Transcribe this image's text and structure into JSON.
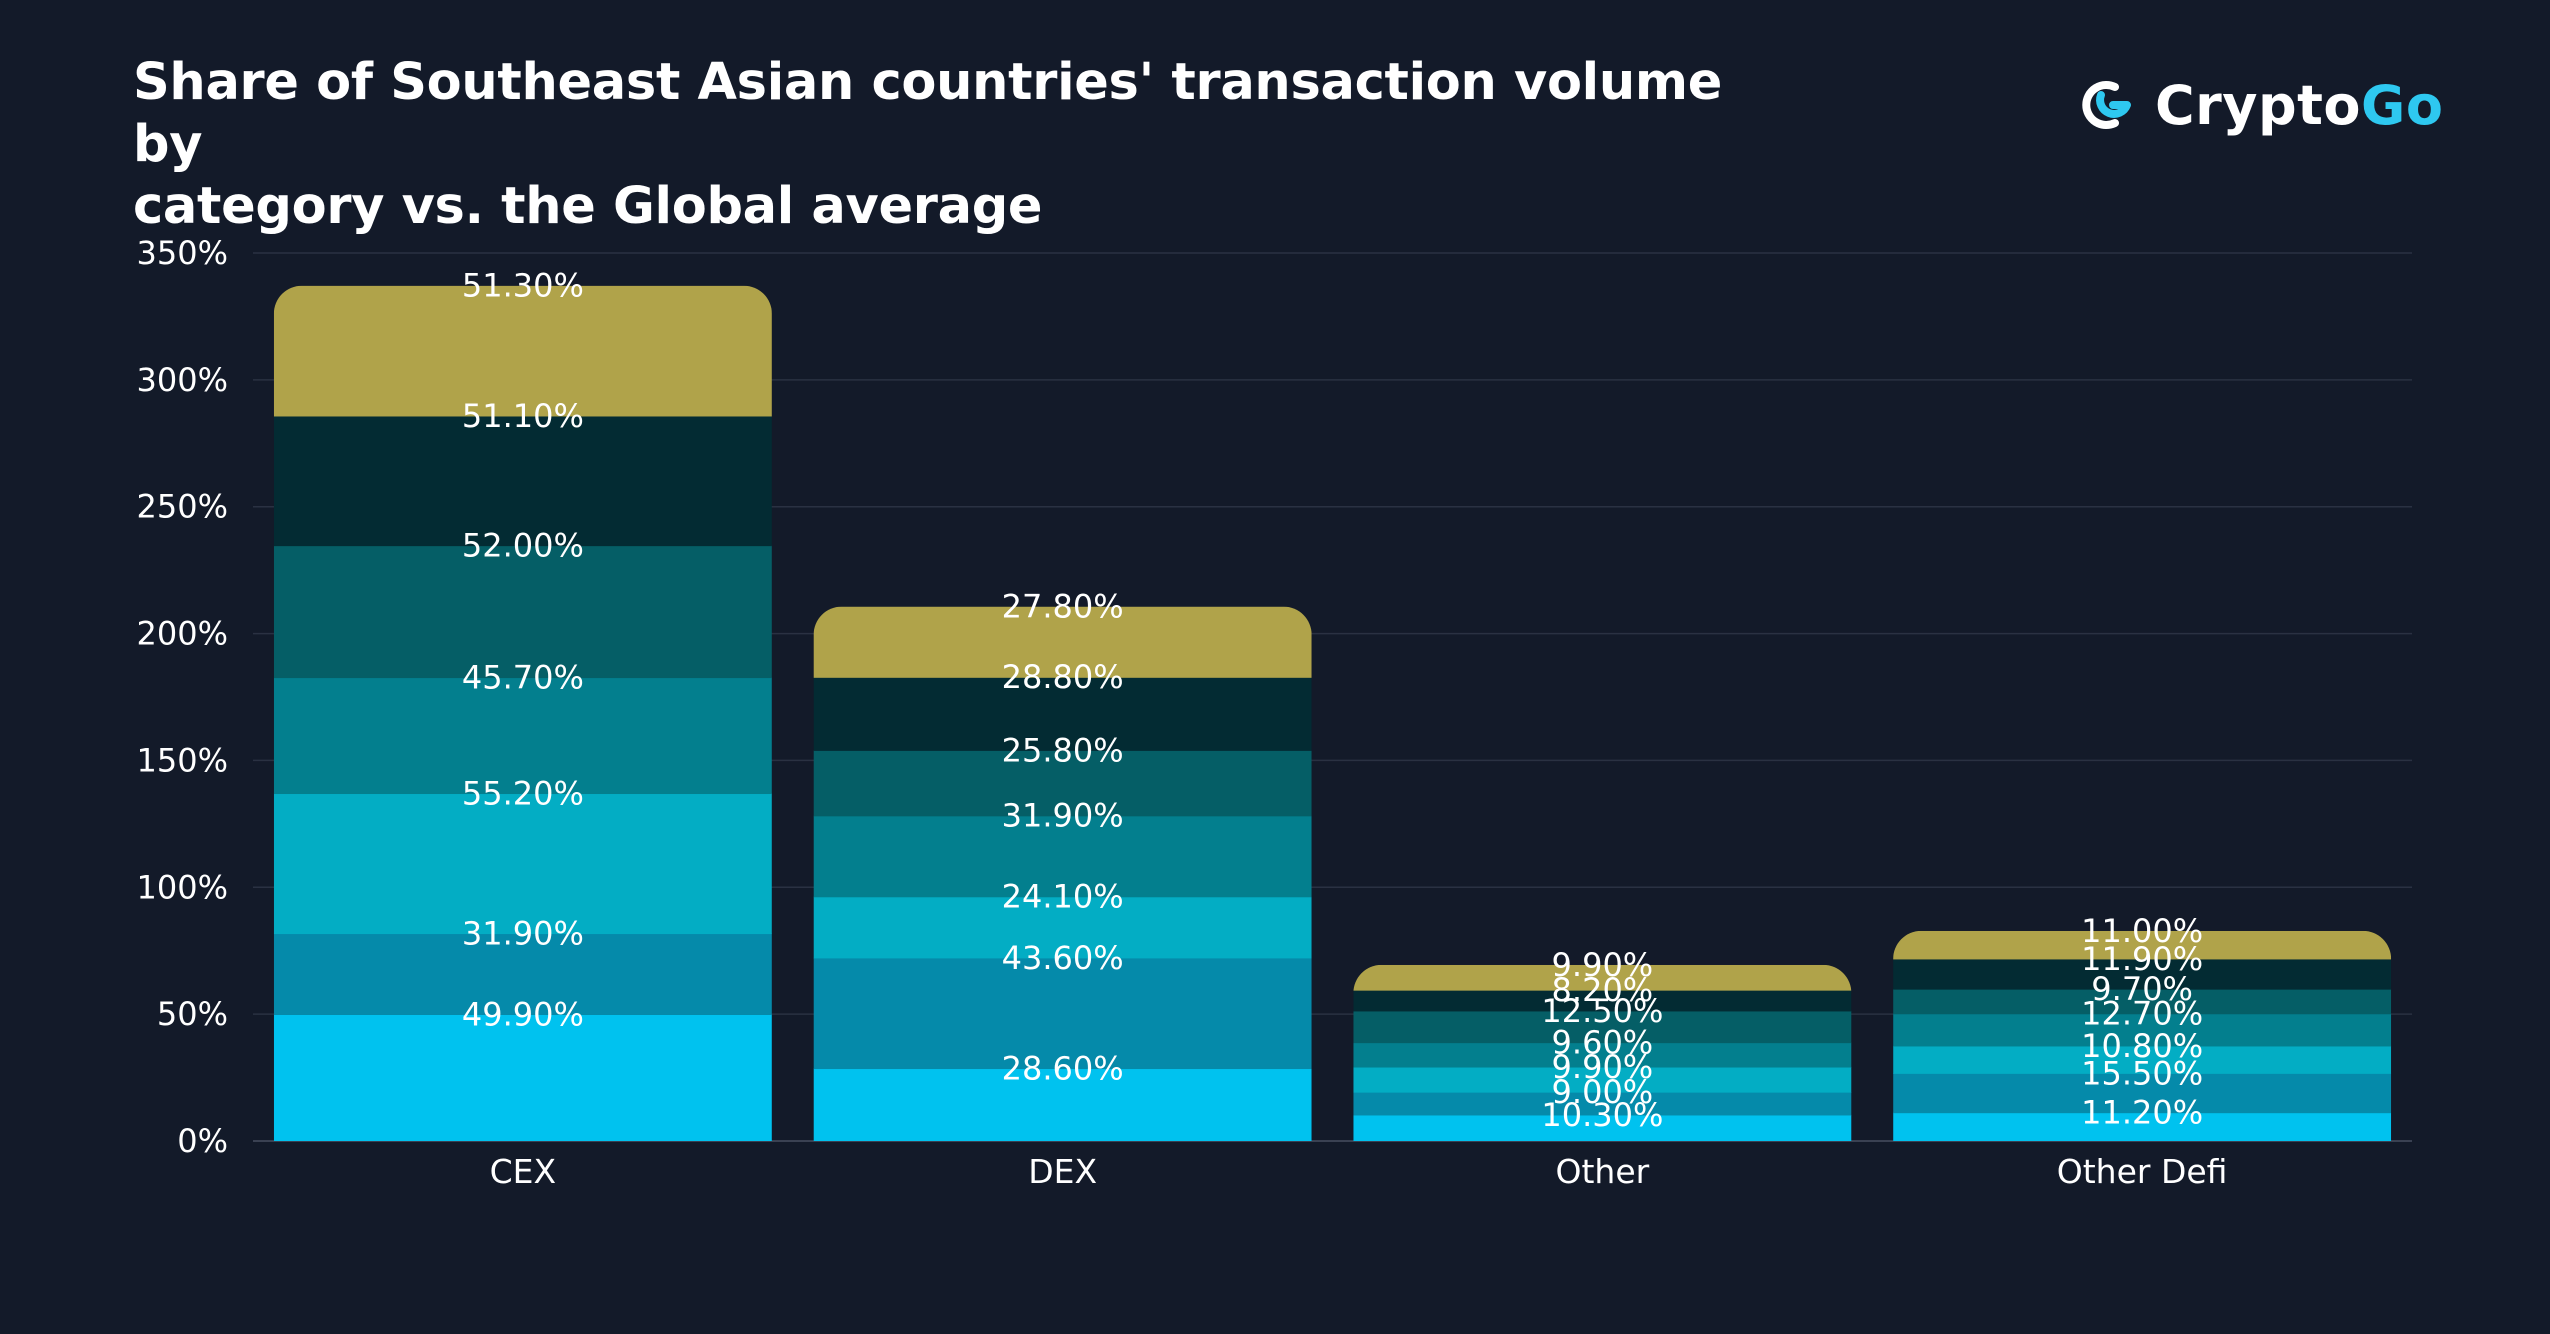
{
  "title_lines": [
    "Share of Southeast Asian countries' transaction volume by",
    "category vs. the Global average"
  ],
  "logo": {
    "text_a": "Crypto",
    "text_b": "Go",
    "icon": "cryptogo-logo-icon"
  },
  "colors": {
    "background": "#131a29",
    "grid": "#2a3142",
    "series": [
      "#00c2ef",
      "#058aaa",
      "#03adc4",
      "#037f8e",
      "#055e66",
      "#032b33",
      "#b0a34a"
    ],
    "logo_accent": "#2ec8f0"
  },
  "chart_data": {
    "type": "bar",
    "stacked": true,
    "categories": [
      "CEX",
      "DEX",
      "Other",
      "Other Defi"
    ],
    "ylim": [
      0,
      350
    ],
    "yticks": [
      0,
      50,
      100,
      150,
      200,
      250,
      300,
      350
    ],
    "ytick_labels": [
      "0%",
      "50%",
      "100%",
      "150%",
      "200%",
      "250%",
      "300%",
      "350%"
    ],
    "grid": true,
    "legend": "none",
    "series": [
      {
        "values": [
          49.9,
          28.6,
          10.3,
          11.2
        ]
      },
      {
        "values": [
          31.9,
          43.6,
          9.0,
          15.5
        ]
      },
      {
        "values": [
          55.2,
          24.1,
          9.9,
          10.8
        ]
      },
      {
        "values": [
          45.7,
          31.9,
          9.6,
          12.7
        ]
      },
      {
        "values": [
          52.0,
          25.8,
          12.5,
          9.7
        ]
      },
      {
        "values": [
          51.1,
          28.8,
          8.2,
          11.9
        ]
      },
      {
        "values": [
          51.3,
          27.8,
          9.9,
          11.0
        ]
      }
    ],
    "data_labels": [
      [
        "49.90%",
        "28.60%",
        "10.30%",
        "11.20%"
      ],
      [
        "31.90%",
        "43.60%",
        "9.00%",
        "15.50%"
      ],
      [
        "55.20%",
        "24.10%",
        "9.90%",
        "10.80%"
      ],
      [
        "45.70%",
        "31.90%",
        "9.60%",
        "12.70%"
      ],
      [
        "52.00%",
        "25.80%",
        "12.50%",
        "9.70%"
      ],
      [
        "51.10%",
        "28.80%",
        "8.20%",
        "11.90%"
      ],
      [
        "51.30%",
        "27.80%",
        "9.90%",
        "11.00%"
      ]
    ]
  }
}
